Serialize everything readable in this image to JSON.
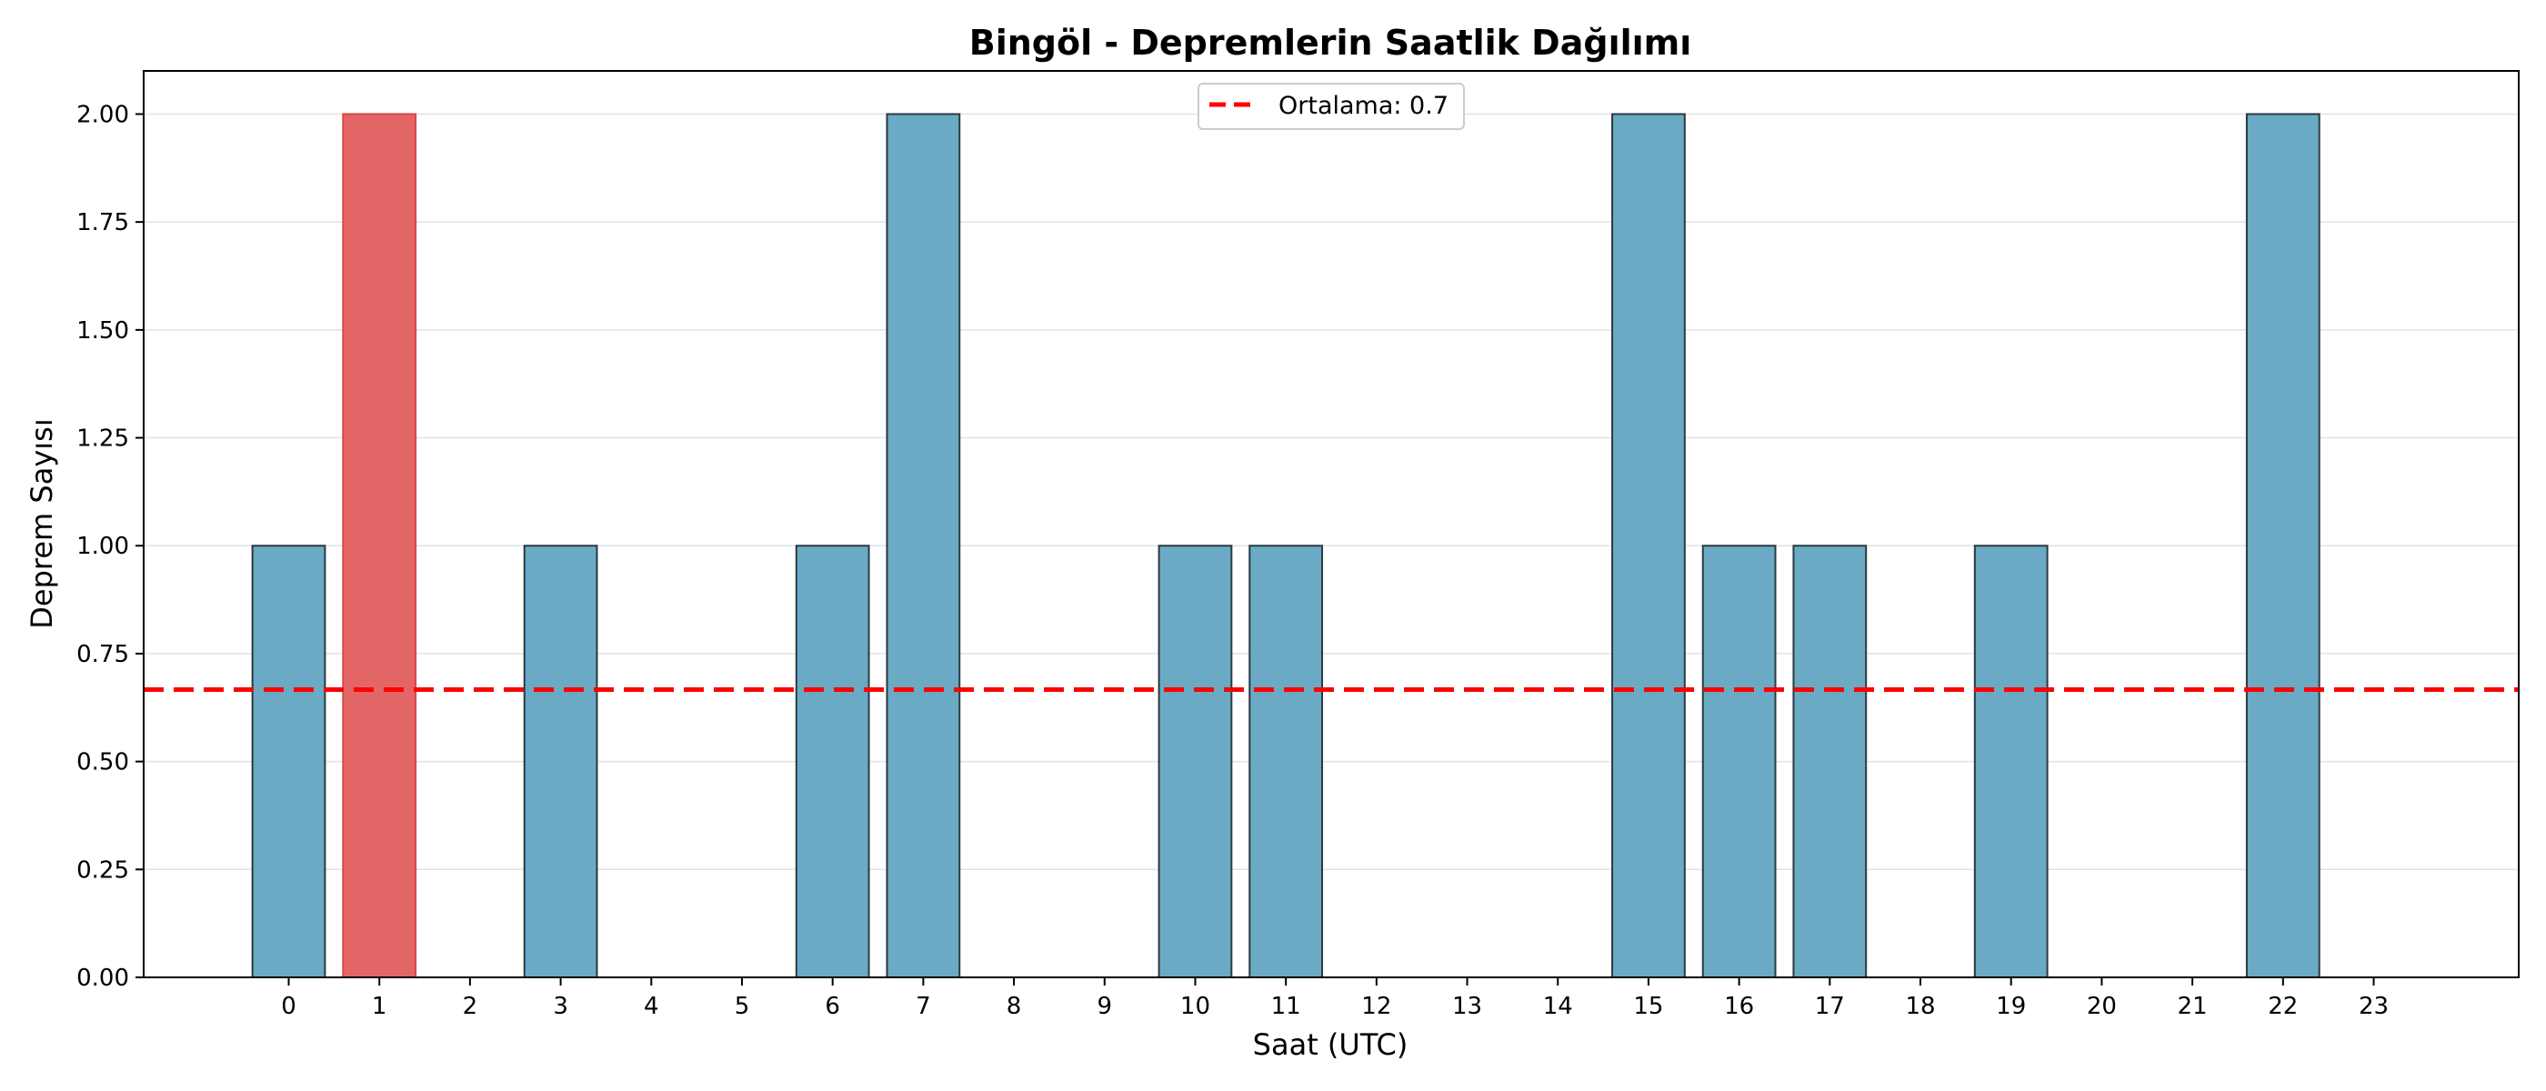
{
  "chart_data": {
    "type": "bar",
    "title": "Bingöl - Depremlerin Saatlik Dağılımı",
    "xlabel": "Saat (UTC)",
    "ylabel": "Deprem Sayısı",
    "categories": [
      "0",
      "1",
      "2",
      "3",
      "4",
      "5",
      "6",
      "7",
      "8",
      "9",
      "10",
      "11",
      "12",
      "13",
      "14",
      "15",
      "16",
      "17",
      "18",
      "19",
      "20",
      "21",
      "22",
      "23"
    ],
    "values": [
      1,
      2,
      0,
      1,
      0,
      0,
      1,
      2,
      0,
      0,
      1,
      1,
      0,
      0,
      0,
      2,
      1,
      1,
      0,
      1,
      0,
      0,
      2,
      0
    ],
    "highlight_index": 1,
    "ylim": [
      0,
      2.1
    ],
    "yticks": [
      "0.00",
      "0.25",
      "0.50",
      "0.75",
      "1.00",
      "1.25",
      "1.50",
      "1.75",
      "2.00"
    ],
    "grid": "y",
    "mean_line": {
      "value": 0.6667,
      "label": "Ortalama: 0.7",
      "color": "#ff0000"
    },
    "legend": {
      "position": "top-center"
    },
    "colors": {
      "bar": "#6aaac4",
      "highlight": "#e36666",
      "bar_edge": "#2b3a40"
    }
  }
}
